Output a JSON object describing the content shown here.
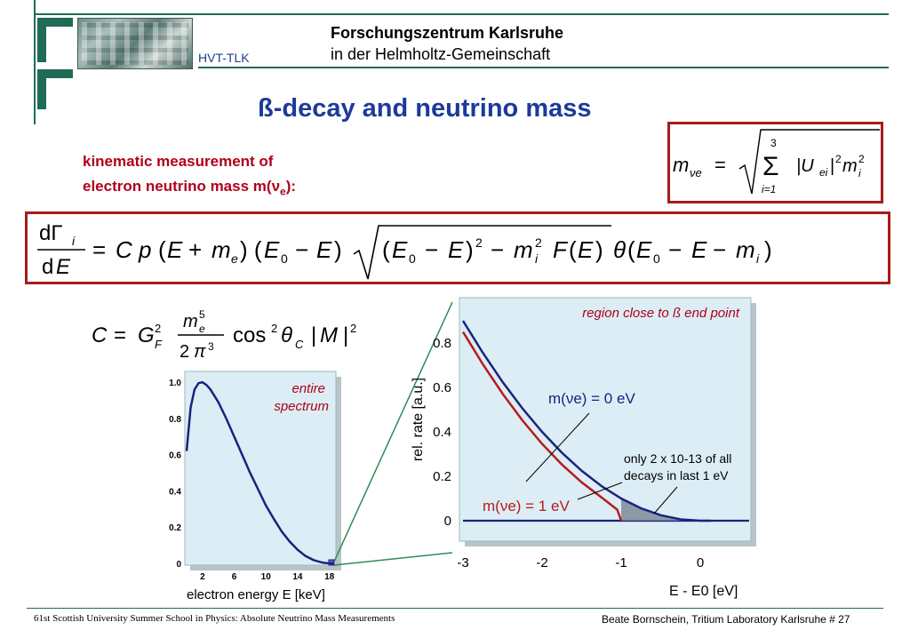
{
  "header": {
    "logo_label": "HVT-TLK",
    "institution_line1": "Forschungszentrum Karlsruhe",
    "institution_line2": "in  der  Helmholtz-Gemeinschaft"
  },
  "slide": {
    "title": "ß-decay and neutrino mass",
    "intro_line1": "kinematic measurement of",
    "intro_line2_prefix": "electron neutrino mass m(",
    "intro_line2_nu": "ν",
    "intro_line2_sub": "e",
    "intro_line2_suffix": "):"
  },
  "formulas": {
    "mass_lhs": "m",
    "mass_lhs_sub": "νe",
    "mass_rhs": "= √( Σ |Uei|² mi² )",
    "mass_sum_top": "3",
    "mass_sum_bottom": "i=1",
    "rate": "dΓi / dE = C p (E + me) (E0 − E) √((E0 − E)² − mi²) F(E) θ(E0 − E − mi)",
    "constant": "C = GF² · me⁵ / (2π³) · cos² θC |M|²"
  },
  "colors": {
    "title_blue": "#1d3a9a",
    "accent_red": "#b0001a",
    "box_red": "#a71b1b",
    "plot_bg": "#dcedf5",
    "curve_blue": "#1a237e",
    "curve_red": "#b71c1c",
    "zoom_green": "#2e8b57"
  },
  "chart_data": [
    {
      "type": "line",
      "annotation": "entire spectrum",
      "xlabel": "electron energy E [keV]",
      "ylabel": "",
      "x_ticks": [
        "2",
        "6",
        "10",
        "14",
        "18"
      ],
      "y_ticks": [
        "0",
        "0.2",
        "0.4",
        "0.6",
        "0.8",
        "1.0"
      ],
      "xlim": [
        0,
        18.6
      ],
      "ylim": [
        0,
        1.05
      ],
      "series": [
        {
          "x": [
            0,
            0.5,
            1,
            1.5,
            2,
            2.5,
            3,
            4,
            5,
            6,
            7,
            8,
            9,
            10,
            11,
            12,
            13,
            14,
            15,
            16,
            17,
            17.5,
            18,
            18.3,
            18.6
          ],
          "values": [
            0.62,
            0.86,
            0.96,
            0.995,
            1.0,
            0.985,
            0.96,
            0.89,
            0.8,
            0.7,
            0.6,
            0.5,
            0.41,
            0.32,
            0.245,
            0.175,
            0.12,
            0.075,
            0.04,
            0.018,
            0.006,
            0.002,
            0.0005,
            0.0001,
            0
          ]
        }
      ]
    },
    {
      "type": "line",
      "annotation": "region close to ß end point",
      "xlabel": "E - E0 [eV]",
      "ylabel": "rel. rate [a.u.]",
      "x_ticks": [
        "-3",
        "-2",
        "-1",
        "0"
      ],
      "y_ticks": [
        "0",
        "0.2",
        "0.4",
        "0.6",
        "0.8"
      ],
      "xlim": [
        -3,
        0.7
      ],
      "ylim": [
        -0.03,
        0.95
      ],
      "series": [
        {
          "name": "m(νe) = 0 eV",
          "x": [
            -3,
            -2.75,
            -2.5,
            -2.25,
            -2,
            -1.75,
            -1.5,
            -1.25,
            -1,
            -0.75,
            -0.5,
            -0.25,
            0
          ],
          "values": [
            0.9,
            0.756,
            0.625,
            0.506,
            0.4,
            0.306,
            0.225,
            0.156,
            0.1,
            0.056,
            0.025,
            0.006,
            0
          ]
        },
        {
          "name": "m(νe) = 1 eV",
          "x": [
            -3,
            -2.75,
            -2.5,
            -2.25,
            -2,
            -1.75,
            -1.5,
            -1.25,
            -1.05,
            -1
          ],
          "values": [
            0.85,
            0.705,
            0.572,
            0.452,
            0.346,
            0.253,
            0.173,
            0.105,
            0.05,
            0
          ]
        }
      ],
      "labels": {
        "curve0": "m(νe) = 0 eV",
        "curve1": "m(νe) = 1 eV",
        "note_line1": "only 2 x 10-13 of all",
        "note_line2": "decays in last 1 eV"
      }
    }
  ],
  "footer": {
    "left": "61st Scottish University Summer School in Physics: Absolute Neutrino Mass Measurements",
    "right": "Beate Bornschein, Tritium Laboratory Karlsruhe   # 27"
  }
}
